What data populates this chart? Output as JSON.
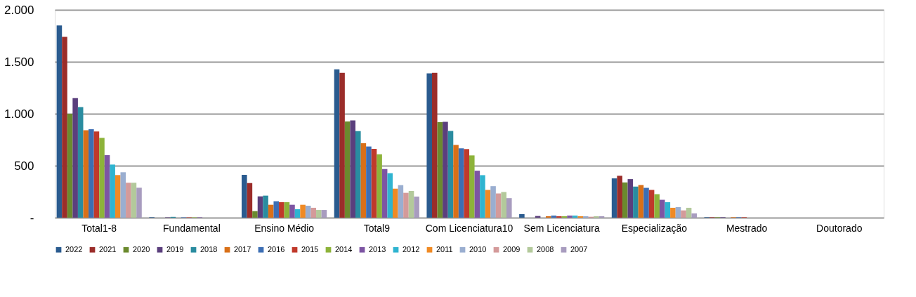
{
  "chart_data": {
    "type": "bar",
    "categories": [
      "Total1-8",
      "Fundamental",
      "Ensino Médio",
      "Total9",
      "Com Licenciatura10",
      "Sem Licenciatura",
      "Especialização",
      "Mestrado",
      "Doutorado"
    ],
    "ylim": [
      0,
      2000
    ],
    "yticks": [
      {
        "value": 0,
        "label": "-"
      },
      {
        "value": 500,
        "label": "500"
      },
      {
        "value": 1000,
        "label": "1.000"
      },
      {
        "value": 1500,
        "label": "1.500"
      },
      {
        "value": 2000,
        "label": "2.000"
      }
    ],
    "grid": "y",
    "legend": "bottom",
    "series": [
      {
        "name": "2022",
        "color": "#2a5b8f",
        "values": [
          1850,
          5,
          412,
          1428,
          1389,
          34,
          378,
          5,
          0
        ]
      },
      {
        "name": "2021",
        "color": "#9b2d2a",
        "values": [
          1740,
          0,
          333,
          1394,
          1394,
          0,
          403,
          5,
          0
        ]
      },
      {
        "name": "2020",
        "color": "#6b8a2e",
        "values": [
          1000,
          0,
          63,
          926,
          919,
          null,
          339,
          5,
          0
        ]
      },
      {
        "name": "2019",
        "color": "#5b3f7d",
        "values": [
          1150,
          4,
          205,
          935,
          922,
          16,
          371,
          5,
          0
        ]
      },
      {
        "name": "2018",
        "color": "#2a8ca0",
        "values": [
          1065,
          8,
          212,
          833,
          835,
          0,
          299,
          0,
          0
        ]
      },
      {
        "name": "2017",
        "color": "#d97018",
        "values": [
          842,
          0,
          124,
          716,
          700,
          14,
          314,
          5,
          0
        ]
      },
      {
        "name": "2016",
        "color": "#3c6eb4",
        "values": [
          851,
          4,
          158,
          685,
          667,
          20,
          287,
          5,
          0
        ]
      },
      {
        "name": "2015",
        "color": "#c0392b",
        "values": [
          829,
          4,
          149,
          662,
          660,
          14,
          267,
          5,
          0
        ]
      },
      {
        "name": "2014",
        "color": "#8db33a",
        "values": [
          768,
          4,
          149,
          610,
          599,
          14,
          226,
          0,
          0
        ]
      },
      {
        "name": "2013",
        "color": "#7d55a3",
        "values": [
          601,
          4,
          124,
          468,
          452,
          20,
          172,
          0,
          0
        ]
      },
      {
        "name": "2012",
        "color": "#2fb4d0",
        "values": [
          511,
          0,
          81,
          428,
          409,
          20,
          149,
          0,
          0
        ]
      },
      {
        "name": "2011",
        "color": "#f08a24",
        "values": [
          410,
          0,
          124,
          279,
          267,
          14,
          95,
          0,
          0
        ]
      },
      {
        "name": "2010",
        "color": "#9aaed0",
        "values": [
          437,
          0,
          115,
          313,
          303,
          14,
          102,
          0,
          0
        ]
      },
      {
        "name": "2009",
        "color": "#d49a9a",
        "values": [
          336,
          0,
          95,
          239,
          233,
          9,
          70,
          0,
          0
        ]
      },
      {
        "name": "2008",
        "color": "#b3c99b",
        "values": [
          336,
          0,
          74,
          257,
          247,
          14,
          95,
          0,
          0
        ]
      },
      {
        "name": "2007",
        "color": "#a89cbf",
        "values": [
          288,
          null,
          74,
          203,
          188,
          14,
          41,
          0,
          0
        ]
      }
    ]
  }
}
